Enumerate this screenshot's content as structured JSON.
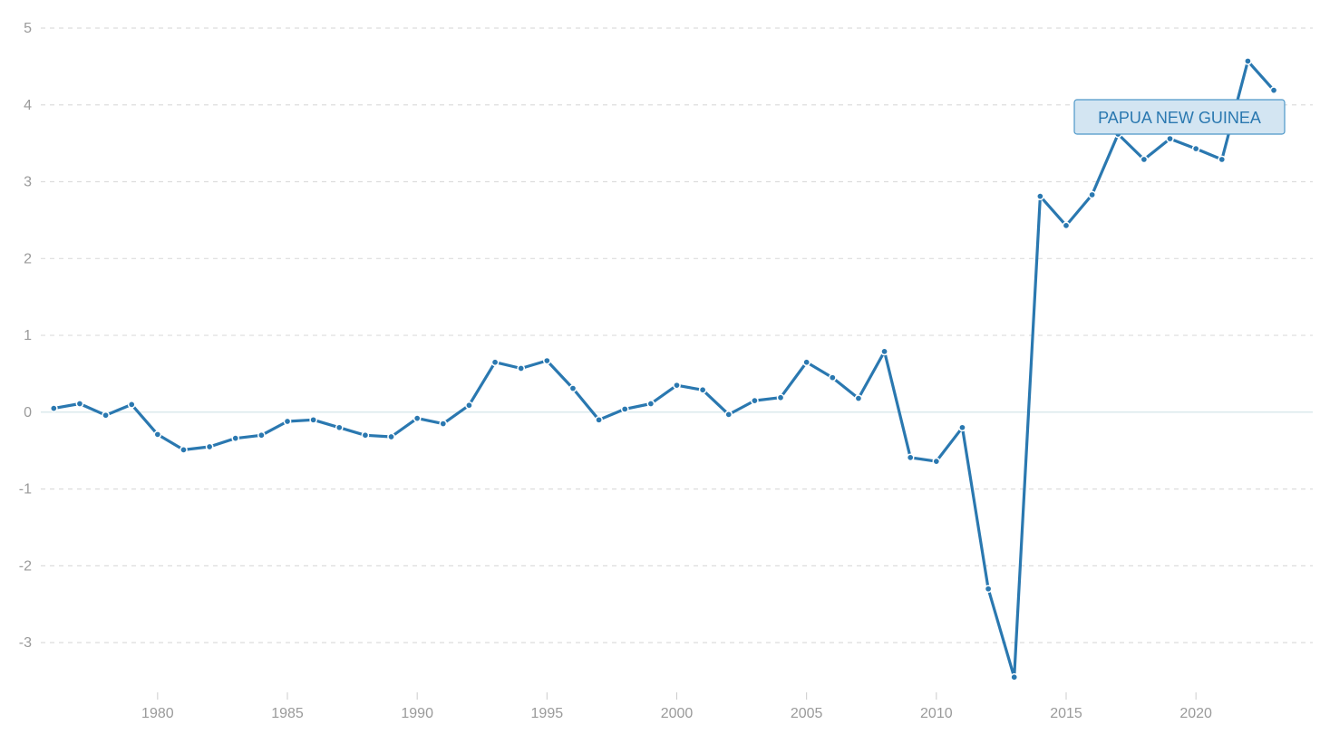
{
  "chart_data": {
    "type": "line",
    "title": "",
    "xlabel": "",
    "ylabel": "",
    "xlim": [
      1975.5,
      2024.5
    ],
    "ylim": [
      -3.6,
      5
    ],
    "grid": true,
    "y_ticks": [
      5,
      4,
      3,
      2,
      1,
      0,
      -1,
      -2,
      -3
    ],
    "y_tick_labels": [
      "5",
      "4",
      "3",
      "2",
      "1",
      "0",
      "-1",
      "-2",
      "-3"
    ],
    "x_ticks": [
      1980,
      1985,
      1990,
      1995,
      2000,
      2005,
      2010,
      2015,
      2020
    ],
    "x_tick_labels": [
      "1980",
      "1985",
      "1990",
      "1995",
      "2000",
      "2005",
      "2010",
      "2015",
      "2020"
    ],
    "series": [
      {
        "name": "PAPUA NEW GUINEA",
        "color": "#2a78b0",
        "x": [
          1976,
          1977,
          1978,
          1979,
          1980,
          1981,
          1982,
          1983,
          1984,
          1985,
          1986,
          1987,
          1988,
          1989,
          1990,
          1991,
          1992,
          1993,
          1994,
          1995,
          1996,
          1997,
          1998,
          1999,
          2000,
          2001,
          2002,
          2003,
          2004,
          2005,
          2006,
          2007,
          2008,
          2009,
          2010,
          2011,
          2012,
          2013,
          2014,
          2015,
          2016,
          2017,
          2018,
          2019,
          2020,
          2021,
          2022,
          2023
        ],
        "values": [
          0.05,
          0.11,
          -0.04,
          0.1,
          -0.29,
          -0.49,
          -0.45,
          -0.34,
          -0.3,
          -0.12,
          -0.1,
          -0.2,
          -0.3,
          -0.32,
          -0.08,
          -0.15,
          0.09,
          0.65,
          0.57,
          0.67,
          0.31,
          -0.1,
          0.04,
          0.11,
          0.35,
          0.29,
          -0.03,
          0.15,
          0.19,
          0.65,
          0.45,
          0.18,
          0.79,
          -0.59,
          -0.64,
          -0.2,
          -2.3,
          -3.45,
          2.81,
          2.43,
          2.83,
          3.62,
          3.29,
          3.56,
          3.43,
          3.29,
          4.57,
          4.19
        ]
      }
    ]
  },
  "series_label": {
    "text": "PAPUA NEW GUINEA",
    "background": "#d3e5f2",
    "border": "#4d97c8"
  }
}
